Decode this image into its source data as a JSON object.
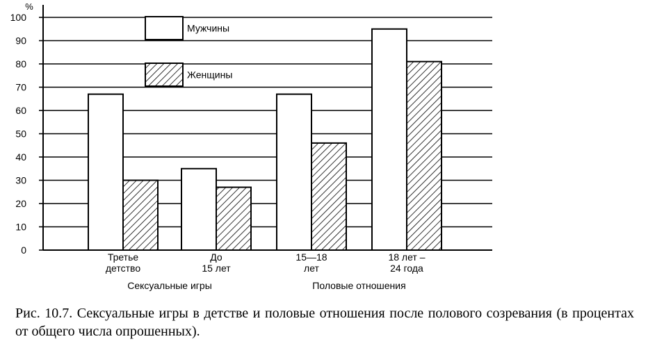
{
  "caption": "Рис. 10.7. Сексуальные игры в детстве и половые отношения после полового созревания (в процентах от общего числа опрошенных).",
  "chart_data": {
    "type": "bar",
    "unit": "%",
    "ylim": [
      0,
      100
    ],
    "yticks": [
      0,
      10,
      20,
      30,
      40,
      50,
      60,
      70,
      80,
      90,
      100
    ],
    "grid": true,
    "legend_position": "top-left",
    "categories": [
      [
        "Третье",
        "детство"
      ],
      [
        "До",
        "15 лет"
      ],
      [
        "15—18",
        "лет"
      ],
      [
        "18 лет –",
        "24 года"
      ]
    ],
    "groups": [
      {
        "label": "Сексуальные игры",
        "categories": [
          0,
          1
        ]
      },
      {
        "label": "Половые отношения",
        "categories": [
          2,
          3
        ]
      }
    ],
    "series": [
      {
        "name": "Мужчины",
        "fill": "white",
        "values": [
          67,
          35,
          67,
          95
        ]
      },
      {
        "name": "Женщины",
        "fill": "hatched",
        "values": [
          30,
          27,
          46,
          81
        ]
      }
    ]
  }
}
